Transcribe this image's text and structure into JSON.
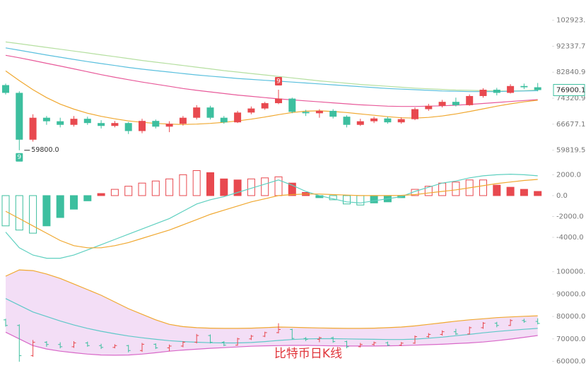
{
  "chart_data": [
    {
      "type": "candlestick",
      "log_scale": true,
      "ylim": [
        56000,
        112000
      ],
      "yticks": [
        102923.2,
        92337.7,
        82840.9,
        74320.9,
        66677.1,
        59819.5
      ],
      "up_color": "#e8494f",
      "down_color": "#3dbf9f",
      "open": [
        78500,
        76000,
        62500,
        68500,
        67500,
        66500,
        68200,
        67000,
        66200,
        67000,
        64800,
        67600,
        66000,
        66800,
        68500,
        71500,
        68500,
        67200,
        70000,
        71200,
        72800,
        74200,
        70200,
        69800,
        70500,
        68800,
        66500,
        67500,
        68300,
        67200,
        68100,
        71000,
        72000,
        73200,
        72200,
        75000,
        77000,
        76000,
        78200,
        77800
      ],
      "high": [
        79000,
        76500,
        69500,
        69000,
        68500,
        69000,
        68800,
        67800,
        67600,
        67300,
        68200,
        68000,
        67500,
        69000,
        72200,
        72000,
        69000,
        70500,
        71800,
        73200,
        77000,
        74500,
        70800,
        71000,
        71000,
        69200,
        68200,
        68800,
        68800,
        68600,
        71500,
        72600,
        73800,
        74500,
        75500,
        77500,
        77600,
        78800,
        79000,
        79200
      ],
      "low": [
        75500,
        59800,
        62000,
        66500,
        65800,
        66000,
        66500,
        65500,
        65800,
        64000,
        64200,
        65500,
        64500,
        66300,
        68000,
        68000,
        66800,
        67000,
        69500,
        70800,
        72500,
        69800,
        69000,
        68500,
        68300,
        65800,
        66200,
        67000,
        66800,
        66800,
        67800,
        70500,
        71500,
        71800,
        72000,
        74500,
        75200,
        75800,
        77200,
        76500
      ],
      "close": [
        76000,
        62500,
        68500,
        67500,
        66500,
        68200,
        67000,
        66200,
        67000,
        64800,
        67600,
        66000,
        66800,
        68500,
        71500,
        68500,
        67200,
        70000,
        71200,
        72800,
        74200,
        70200,
        69800,
        70500,
        68800,
        66500,
        67500,
        68300,
        67200,
        68100,
        71000,
        72000,
        73200,
        72200,
        75000,
        77000,
        76000,
        78200,
        77800,
        76900.1
      ],
      "annotation": {
        "value": 59800,
        "label": "59800.0"
      },
      "markers": [
        {
          "index": 20,
          "label": "9",
          "position": "above",
          "color": "#e8494f"
        },
        {
          "index": 1,
          "label": "9",
          "position": "below",
          "color": "#3dbf9f"
        }
      ],
      "series": [
        {
          "color": "#b5dfa0",
          "values": [
            94000,
            93300,
            92600,
            91900,
            91200,
            90500,
            89800,
            89100,
            88400,
            87700,
            87000,
            86400,
            85800,
            85200,
            84600,
            84000,
            83400,
            82900,
            82400,
            81900,
            81400,
            80900,
            80400,
            79900,
            79500,
            79100,
            78700,
            78400,
            78100,
            77800,
            77500,
            77300,
            77100,
            76900,
            76800,
            76700,
            76600,
            76600,
            76700,
            76900
          ]
        },
        {
          "color": "#5bc0de",
          "values": [
            91700,
            90800,
            89900,
            89000,
            88200,
            87400,
            86600,
            85900,
            85200,
            84500,
            83900,
            83400,
            82900,
            82400,
            81900,
            81500,
            81100,
            80700,
            80400,
            80100,
            79800,
            79500,
            79200,
            78900,
            78600,
            78300,
            78000,
            77700,
            77400,
            77200,
            77000,
            76800,
            76600,
            76500,
            76400,
            76400,
            76400,
            76500,
            76600,
            76700
          ]
        },
        {
          "color": "#e85a9a",
          "values": [
            88900,
            88000,
            87000,
            86000,
            85000,
            84000,
            83000,
            82000,
            81100,
            80300,
            79500,
            78800,
            78100,
            77400,
            76800,
            76300,
            75800,
            75300,
            74900,
            74500,
            74100,
            73800,
            73500,
            73200,
            72900,
            72600,
            72300,
            72100,
            71900,
            71800,
            71800,
            71900,
            72000,
            72200,
            72400,
            72700,
            73000,
            73300,
            73600,
            73900
          ]
        },
        {
          "color": "#f0a830",
          "values": [
            83300,
            80000,
            77000,
            74500,
            72500,
            71000,
            69800,
            68900,
            68200,
            67600,
            67200,
            66900,
            66700,
            66600,
            66700,
            66900,
            67200,
            67600,
            68100,
            68700,
            69400,
            70000,
            70400,
            70500,
            70300,
            70000,
            69600,
            69200,
            68800,
            68500,
            68400,
            68600,
            69000,
            69600,
            70300,
            71100,
            71900,
            72600,
            73200,
            73700
          ]
        }
      ]
    },
    {
      "type": "macd",
      "ylim": [
        -6300,
        2500
      ],
      "yticks": [
        {
          "value": 2000,
          "label": "2000.0"
        },
        {
          "value": 0,
          "label": "0.0"
        },
        {
          "value": -2000,
          "label": "-2000.0"
        },
        {
          "value": -4000,
          "label": "-4000.0"
        }
      ],
      "up_color": "#e8494f",
      "down_color": "#3dbf9f",
      "values": [
        -2900,
        -3300,
        -3600,
        -2900,
        -2100,
        -1300,
        -500,
        200,
        600,
        900,
        1200,
        1400,
        1600,
        2000,
        2400,
        2200,
        1600,
        1500,
        1600,
        1700,
        1800,
        1200,
        300,
        -200,
        -400,
        -800,
        -900,
        -700,
        -600,
        -200,
        600,
        900,
        1200,
        1300,
        1500,
        1500,
        1000,
        800,
        600,
        400
      ],
      "series": [
        {
          "color": "#5fd0c0",
          "values": [
            -3500,
            -5000,
            -5700,
            -6000,
            -6000,
            -5700,
            -5200,
            -4700,
            -4200,
            -3700,
            -3200,
            -2700,
            -2200,
            -1500,
            -800,
            -400,
            -100,
            300,
            700,
            1100,
            1500,
            1000,
            400,
            0,
            -300,
            -600,
            -700,
            -500,
            -300,
            -100,
            400,
            800,
            1200,
            1400,
            1700,
            1900,
            2000,
            2050,
            2000,
            1900
          ]
        },
        {
          "color": "#f0a830",
          "values": [
            -1500,
            -2200,
            -2900,
            -3600,
            -4300,
            -4800,
            -5000,
            -5000,
            -4800,
            -4500,
            -4100,
            -3700,
            -3300,
            -2800,
            -2300,
            -1800,
            -1400,
            -1000,
            -600,
            -300,
            0,
            100,
            150,
            150,
            100,
            50,
            0,
            0,
            0,
            20,
            100,
            250,
            400,
            550,
            750,
            950,
            1150,
            1300,
            1450,
            1550
          ]
        }
      ]
    },
    {
      "type": "bollinger",
      "title": "比特币日K线",
      "ylim": [
        57000,
        104000
      ],
      "yticks": [
        {
          "value": 100000,
          "label": "100000.0"
        },
        {
          "value": 90000,
          "label": "90000.0"
        },
        {
          "value": 80000,
          "label": "80000.0"
        },
        {
          "value": 70000,
          "label": "70000.0"
        },
        {
          "value": 60000,
          "label": "60000.0"
        }
      ],
      "fill": "#f3def6",
      "series": [
        {
          "color": "#f0a830",
          "values": [
            98000,
            100800,
            100500,
            99000,
            97000,
            94500,
            92000,
            89500,
            86500,
            83500,
            81000,
            78500,
            76500,
            75500,
            75000,
            74800,
            74700,
            74700,
            74800,
            75000,
            75300,
            75200,
            75000,
            74900,
            74800,
            74700,
            74700,
            74800,
            75000,
            75300,
            75800,
            76500,
            77200,
            77900,
            78500,
            79000,
            79500,
            79800,
            80100,
            80300
          ]
        },
        {
          "color": "#5fc8c8",
          "values": [
            88000,
            85000,
            82000,
            80000,
            78000,
            76200,
            74700,
            73400,
            72300,
            71300,
            70500,
            69800,
            69200,
            68800,
            68500,
            68300,
            68200,
            68200,
            68400,
            68800,
            69300,
            69700,
            70000,
            70100,
            70100,
            70000,
            69900,
            69800,
            69700,
            69700,
            69900,
            70300,
            70800,
            71400,
            72000,
            72700,
            73300,
            73800,
            74300,
            74700
          ]
        },
        {
          "color": "#d868c8",
          "values": [
            73000,
            70000,
            67000,
            65500,
            64500,
            63800,
            63200,
            62800,
            62700,
            62800,
            63200,
            63800,
            64500,
            65000,
            65400,
            65800,
            66100,
            66400,
            66700,
            66900,
            67000,
            67100,
            67100,
            67000,
            66900,
            66800,
            66800,
            66800,
            66900,
            67000,
            67200,
            67400,
            67600,
            67900,
            68200,
            68600,
            69200,
            69900,
            70700,
            71500
          ]
        }
      ]
    }
  ]
}
